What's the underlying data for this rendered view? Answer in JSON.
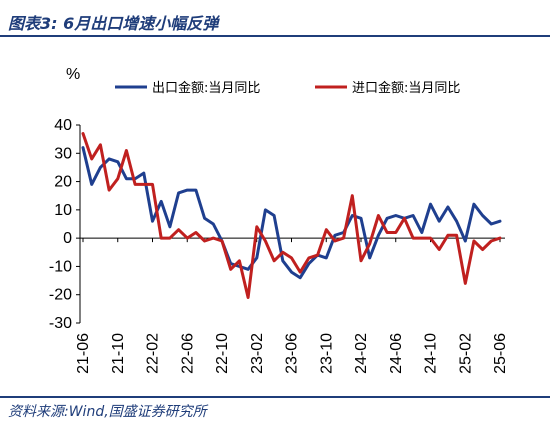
{
  "header": {
    "title": "图表3:  6月出口增速小幅反弹"
  },
  "footer": {
    "source": "资料来源:Wind,国盛证券研究所"
  },
  "colors": {
    "accent": "#1f3d7a",
    "export_series": "#1f3f8f",
    "import_series": "#c0201f"
  },
  "chart_data": {
    "type": "line",
    "ylabel": "%",
    "ylim": [
      -30,
      40
    ],
    "yticks": [
      40,
      30,
      20,
      10,
      0,
      -10,
      -20,
      -30
    ],
    "grid": false,
    "legend_position": "top",
    "xticks": [
      "21-06",
      "21-10",
      "22-02",
      "22-06",
      "22-10",
      "23-02",
      "23-06",
      "23-10",
      "24-02",
      "24-06",
      "24-10",
      "25-02",
      "25-06"
    ],
    "x": [
      "21-06",
      "21-07",
      "21-08",
      "21-09",
      "21-10",
      "21-11",
      "21-12",
      "22-01",
      "22-02",
      "22-03",
      "22-04",
      "22-05",
      "22-06",
      "22-07",
      "22-08",
      "22-09",
      "22-10",
      "22-11",
      "22-12",
      "23-01",
      "23-02",
      "23-03",
      "23-04",
      "23-05",
      "23-06",
      "23-07",
      "23-08",
      "23-09",
      "23-10",
      "23-11",
      "23-12",
      "24-01",
      "24-02",
      "24-03",
      "24-04",
      "24-05",
      "24-06",
      "24-07",
      "24-08",
      "24-09",
      "24-10",
      "24-11",
      "24-12",
      "25-01",
      "25-02",
      "25-03",
      "25-04",
      "25-05",
      "25-06"
    ],
    "series": [
      {
        "name": "出口金额:当月同比",
        "values": [
          32,
          19,
          25,
          28,
          27,
          21,
          21,
          23,
          6,
          13,
          4,
          16,
          17,
          17,
          7,
          5,
          -1,
          -9,
          -10,
          -11,
          -7,
          10,
          8,
          -8,
          -12,
          -14,
          -9,
          -6,
          -7,
          1,
          2,
          8,
          7,
          -7,
          1,
          7,
          8,
          7,
          8,
          2,
          12,
          6,
          11,
          6,
          -1,
          12,
          8,
          5,
          6
        ],
        "legend": "出口金额:当月同比"
      },
      {
        "name": "进口金额:当月同比",
        "values": [
          37,
          28,
          33,
          17,
          21,
          31,
          19,
          19,
          19,
          0,
          0,
          3,
          0,
          2,
          -1,
          0,
          -1,
          -11,
          -8,
          -21,
          4,
          -1,
          -8,
          -5,
          -7,
          -12,
          -7,
          -6,
          3,
          -1,
          0,
          15,
          -8,
          -2,
          8,
          2,
          2,
          7,
          0,
          0,
          0,
          -4,
          1,
          1,
          -16,
          -1,
          -4,
          -1,
          0
        ],
        "legend": "进口金额:当月同比"
      }
    ]
  }
}
